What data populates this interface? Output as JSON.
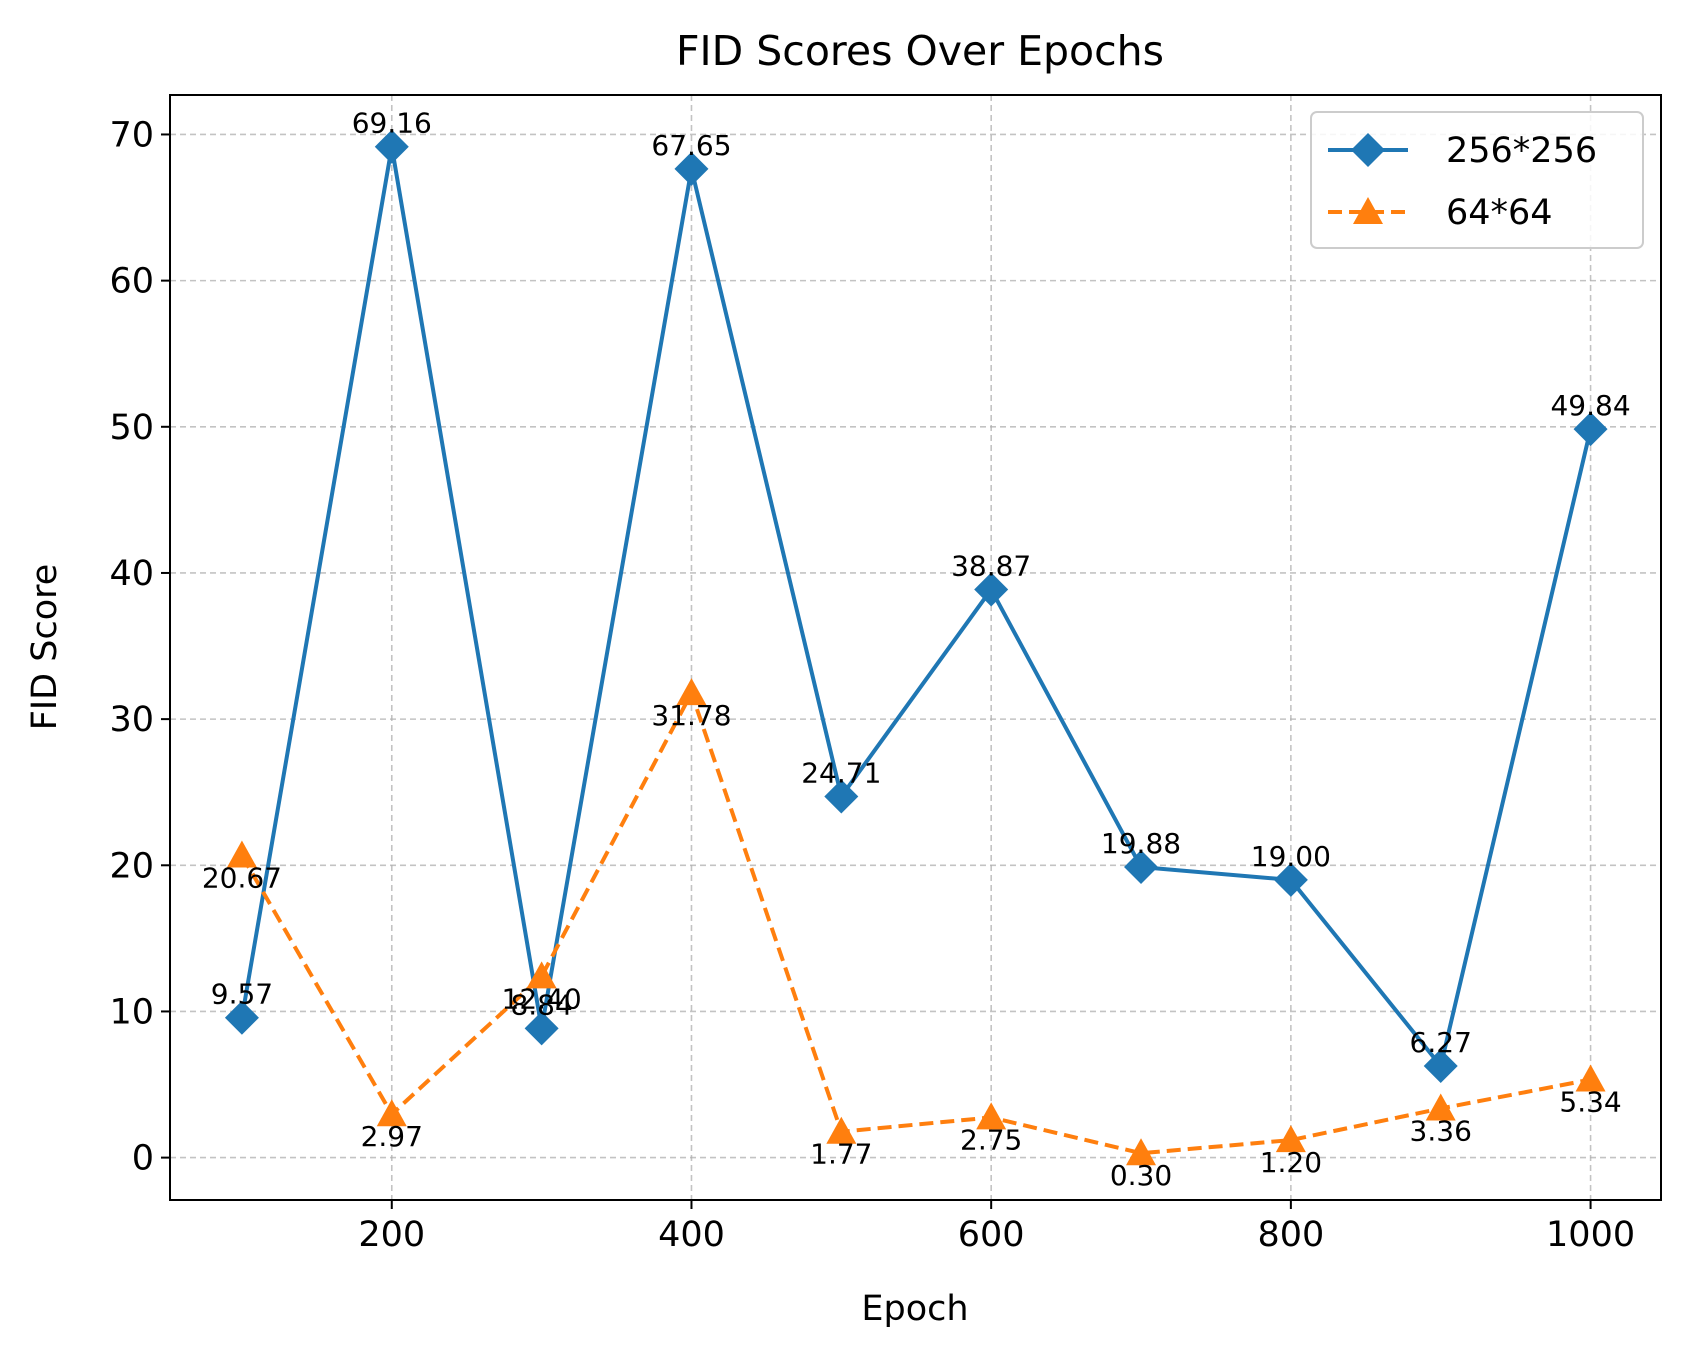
{
  "chart_data": {
    "type": "line",
    "title": "FID Scores Over Epochs",
    "xlabel": "Epoch",
    "ylabel": "FID Score",
    "x": [
      100,
      200,
      300,
      400,
      500,
      600,
      700,
      800,
      900,
      1000
    ],
    "xlim": [
      52,
      1047
    ],
    "ylim": [
      -2.9,
      72.7
    ],
    "xticks": [
      200,
      400,
      600,
      800,
      1000
    ],
    "yticks": [
      0,
      10,
      20,
      30,
      40,
      50,
      60,
      70
    ],
    "grid": true,
    "legend_position": "top-right",
    "series": [
      {
        "name": "256*256",
        "values": [
          9.57,
          69.16,
          8.84,
          67.65,
          24.71,
          38.87,
          19.88,
          19.0,
          6.27,
          49.84
        ],
        "labels": [
          "9.57",
          "69.16",
          "8.84",
          "67.65",
          "24.71",
          "38.87",
          "19.88",
          "19.00",
          "6.27",
          "49.84"
        ],
        "color": "#1f77b4",
        "line_style": "solid",
        "marker": "diamond"
      },
      {
        "name": "64*64",
        "values": [
          20.67,
          2.97,
          12.4,
          31.78,
          1.77,
          2.75,
          0.3,
          1.2,
          3.36,
          5.34
        ],
        "labels": [
          "20.67",
          "2.97",
          "12.40",
          "31.78",
          "1.77",
          "2.75",
          "0.30",
          "1.20",
          "3.36",
          "5.34"
        ],
        "color": "#ff7f0e",
        "line_style": "dashed",
        "marker": "triangle"
      }
    ]
  }
}
